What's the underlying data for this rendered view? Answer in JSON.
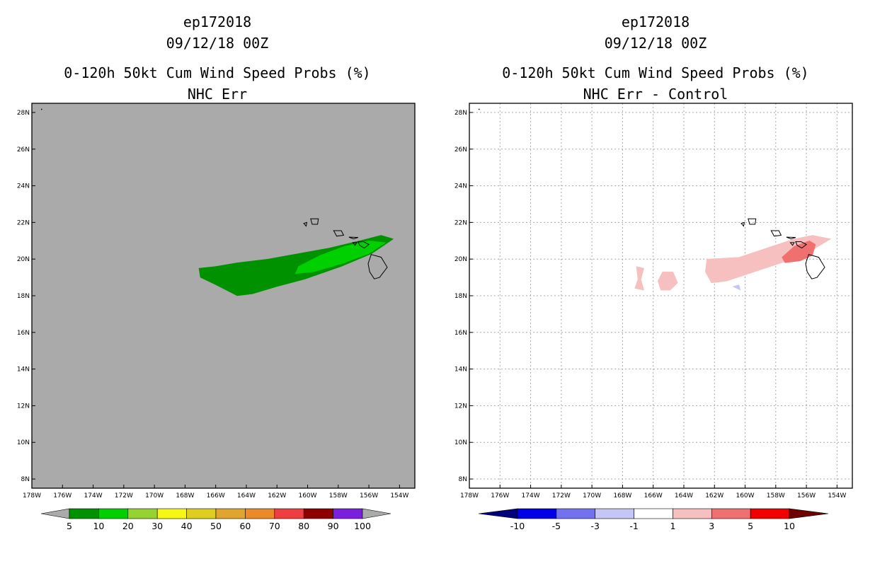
{
  "chart_data": [
    {
      "type": "heatmap",
      "title_lines": [
        "ep172018",
        "09/12/18 00Z",
        "0-120h 50kt Cum Wind Speed Probs (%)",
        "NHC Err"
      ],
      "x_ticks": [
        "178W",
        "176W",
        "174W",
        "172W",
        "170W",
        "168W",
        "166W",
        "164W",
        "162W",
        "160W",
        "158W",
        "156W",
        "154W"
      ],
      "y_ticks": [
        "8N",
        "10N",
        "12N",
        "14N",
        "16N",
        "18N",
        "20N",
        "22N",
        "24N",
        "26N",
        "28N"
      ],
      "xlim": [
        -178,
        -153
      ],
      "ylim": [
        7.5,
        28.5
      ],
      "background": "#aaaaaa",
      "gridlines": false,
      "colorbar": {
        "levels": [
          "5",
          "10",
          "20",
          "30",
          "40",
          "50",
          "60",
          "70",
          "80",
          "90",
          "100"
        ],
        "colors": [
          "#009100",
          "#00cf00",
          "#95d330",
          "#f7f716",
          "#dfcd1f",
          "#e0a52d",
          "#ec8a28",
          "#f03e40",
          "#8e0000",
          "#7a20dd"
        ],
        "under_color": "#aaaaaa",
        "over_color": "#aaaaaa"
      },
      "contours": [
        {
          "range": "5-10",
          "color": "#009100",
          "polygon": [
            [
              -167.1,
              19.5
            ],
            [
              -166,
              19.6
            ],
            [
              -164.6,
              19.8
            ],
            [
              -162.6,
              20
            ],
            [
              -160.6,
              20.3
            ],
            [
              -158.6,
              20.6
            ],
            [
              -156.6,
              21
            ],
            [
              -155.2,
              21.3
            ],
            [
              -154.4,
              21.1
            ],
            [
              -155.8,
              20.3
            ],
            [
              -157.8,
              19.6
            ],
            [
              -160.2,
              18.9
            ],
            [
              -162,
              18.5
            ],
            [
              -163.6,
              18.1
            ],
            [
              -164.6,
              18
            ],
            [
              -166,
              18.6
            ],
            [
              -167,
              19
            ]
          ]
        },
        {
          "range": "10-20",
          "color": "#00cf00",
          "polygon": [
            [
              -160.6,
              19.6
            ],
            [
              -159.2,
              20.2
            ],
            [
              -157.6,
              20.7
            ],
            [
              -156,
              21
            ],
            [
              -154.9,
              20.9
            ],
            [
              -156,
              20.3
            ],
            [
              -157.6,
              19.8
            ],
            [
              -159.6,
              19.3
            ],
            [
              -160.8,
              19.2
            ]
          ]
        }
      ]
    },
    {
      "type": "heatmap",
      "title_lines": [
        "ep172018",
        "09/12/18 00Z",
        "0-120h 50kt Cum Wind Speed Probs (%)",
        "NHC Err - Control"
      ],
      "x_ticks": [
        "178W",
        "176W",
        "174W",
        "172W",
        "170W",
        "168W",
        "166W",
        "164W",
        "162W",
        "160W",
        "158W",
        "156W",
        "154W"
      ],
      "y_ticks": [
        "8N",
        "10N",
        "12N",
        "14N",
        "16N",
        "18N",
        "20N",
        "22N",
        "24N",
        "26N",
        "28N"
      ],
      "xlim": [
        -178,
        -153
      ],
      "ylim": [
        7.5,
        28.5
      ],
      "background": "#ffffff",
      "gridlines": true,
      "colorbar": {
        "levels": [
          "-10",
          "-5",
          "-3",
          "-1",
          "1",
          "3",
          "5",
          "10"
        ],
        "colors": [
          "#0000e8",
          "#7272f0",
          "#c6c6f6",
          "#ffffff",
          "#f7c0c0",
          "#f07070",
          "#f00000"
        ],
        "under_color": "#00007a",
        "over_color": "#6e0000"
      },
      "contours": [
        {
          "range": "1-3",
          "color": "#f7c0c0",
          "polygon": [
            [
              -162.5,
              20
            ],
            [
              -160.4,
              20.1
            ],
            [
              -158.6,
              20.6
            ],
            [
              -156.8,
              21.1
            ],
            [
              -155.6,
              21.3
            ],
            [
              -154.4,
              21.1
            ],
            [
              -155.6,
              20.5
            ],
            [
              -157.6,
              19.8
            ],
            [
              -159.4,
              19.3
            ],
            [
              -161.2,
              18.8
            ],
            [
              -162.2,
              18.7
            ],
            [
              -162.6,
              19.3
            ]
          ]
        },
        {
          "range": "1-3",
          "color": "#f7c0c0",
          "polygon": [
            [
              -165.4,
              19.3
            ],
            [
              -164.7,
              19.3
            ],
            [
              -164.4,
              18.7
            ],
            [
              -164.9,
              18.3
            ],
            [
              -165.5,
              18.3
            ],
            [
              -165.7,
              18.8
            ]
          ]
        },
        {
          "range": "1-3",
          "color": "#f7c0c0",
          "polygon": [
            [
              -167.1,
              19.6
            ],
            [
              -166.6,
              19.5
            ],
            [
              -166.8,
              18.9
            ],
            [
              -166.6,
              18.3
            ],
            [
              -167.2,
              18.4
            ],
            [
              -167,
              18.9
            ]
          ]
        },
        {
          "range": "3-5",
          "color": "#f07070",
          "polygon": [
            [
              -157.6,
              20.1
            ],
            [
              -156.8,
              20.7
            ],
            [
              -155.8,
              21
            ],
            [
              -155.4,
              20.8
            ],
            [
              -155.6,
              20.2
            ],
            [
              -156.4,
              19.9
            ],
            [
              -157.4,
              19.8
            ]
          ]
        },
        {
          "range": "-3--1",
          "color": "#c6c6f6",
          "polygon": [
            [
              -160.8,
              18.5
            ],
            [
              -160.4,
              18.6
            ],
            [
              -160.3,
              18.3
            ]
          ]
        }
      ]
    }
  ]
}
